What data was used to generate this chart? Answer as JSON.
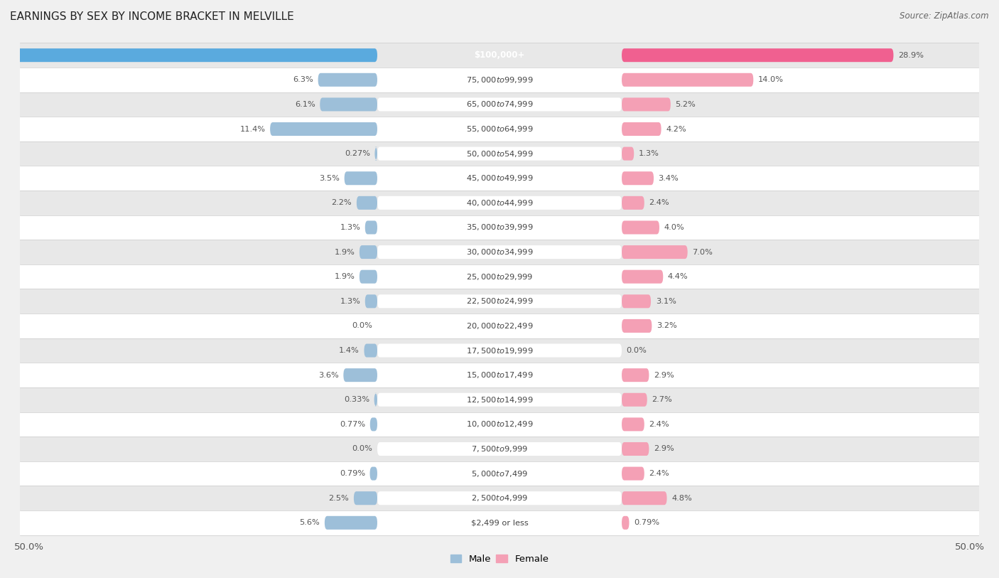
{
  "title": "EARNINGS BY SEX BY INCOME BRACKET IN MELVILLE",
  "source": "Source: ZipAtlas.com",
  "categories": [
    "$2,499 or less",
    "$2,500 to $4,999",
    "$5,000 to $7,499",
    "$7,500 to $9,999",
    "$10,000 to $12,499",
    "$12,500 to $14,999",
    "$15,000 to $17,499",
    "$17,500 to $19,999",
    "$20,000 to $22,499",
    "$22,500 to $24,999",
    "$25,000 to $29,999",
    "$30,000 to $34,999",
    "$35,000 to $39,999",
    "$40,000 to $44,999",
    "$45,000 to $49,999",
    "$50,000 to $54,999",
    "$55,000 to $64,999",
    "$65,000 to $74,999",
    "$75,000 to $99,999",
    "$100,000+"
  ],
  "male_values": [
    5.6,
    2.5,
    0.79,
    0.0,
    0.77,
    0.33,
    3.6,
    1.4,
    0.0,
    1.3,
    1.9,
    1.9,
    1.3,
    2.2,
    3.5,
    0.27,
    11.4,
    6.1,
    6.3,
    48.8
  ],
  "female_values": [
    0.79,
    4.8,
    2.4,
    2.9,
    2.4,
    2.7,
    2.9,
    0.0,
    3.2,
    3.1,
    4.4,
    7.0,
    4.0,
    2.4,
    3.4,
    1.3,
    4.2,
    5.2,
    14.0,
    28.9
  ],
  "male_color": "#9dbfd9",
  "female_color": "#f4a0b5",
  "male_last_color": "#5aaade",
  "female_last_color": "#f06090",
  "bg_color": "#f0f0f0",
  "row_color_even": "#ffffff",
  "row_color_odd": "#e8e8e8",
  "label_text_color": "#444444",
  "male_label_color": "#555555",
  "female_label_color": "#555555",
  "last_male_label_color": "#ffffff",
  "last_female_label_color": "#333333",
  "x_axis_label_left": "50.0%",
  "x_axis_label_right": "50.0%",
  "legend_male": "Male",
  "legend_female": "Female",
  "xlim": 50,
  "scale_factor": 0.85
}
